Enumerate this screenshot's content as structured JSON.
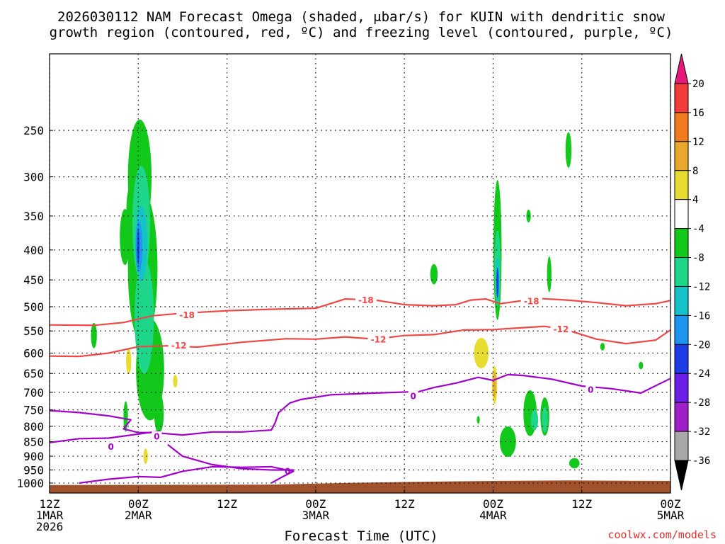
{
  "chart_data": {
    "type": "heatmap",
    "title_lines": [
      "2026030112 NAM Forecast Omega (shaded, μbar/s) for KUIN with dendritic snow",
      "growth region (contoured, red, ºC) and freezing level (contoured, purple, ºC)"
    ],
    "xlabel": "Forecast Time (UTC)",
    "credit": "coolwx.com/models",
    "x_range_hours": [
      0,
      84
    ],
    "x_ticks": [
      {
        "h": 0,
        "line1": "12Z",
        "line2": "1MAR",
        "line3": "2026"
      },
      {
        "h": 12,
        "line1": "00Z",
        "line2": "2MAR",
        "line3": ""
      },
      {
        "h": 24,
        "line1": "12Z",
        "line2": "",
        "line3": ""
      },
      {
        "h": 36,
        "line1": "00Z",
        "line2": "3MAR",
        "line3": ""
      },
      {
        "h": 48,
        "line1": "12Z",
        "line2": "",
        "line3": ""
      },
      {
        "h": 60,
        "line1": "00Z",
        "line2": "4MAR",
        "line3": ""
      },
      {
        "h": 72,
        "line1": "12Z",
        "line2": "",
        "line3": ""
      },
      {
        "h": 84,
        "line1": "00Z",
        "line2": "5MAR",
        "line3": ""
      }
    ],
    "y_axis": {
      "scale": "log",
      "range_hpa": [
        1040,
        185
      ],
      "inverted": true,
      "ticks": [
        250,
        300,
        350,
        400,
        450,
        500,
        550,
        600,
        650,
        700,
        750,
        800,
        850,
        900,
        950,
        1000
      ]
    },
    "colorbar": {
      "labels": [
        "20",
        "16",
        "12",
        "8",
        "4",
        "-4",
        "-8",
        "-12",
        "-16",
        "-20",
        "-24",
        "-28",
        "-32",
        "-36"
      ],
      "bins": [
        {
          "lo": 16,
          "hi": 20,
          "color": "#f23c3c"
        },
        {
          "lo": 12,
          "hi": 16,
          "color": "#f07a1e"
        },
        {
          "lo": 8,
          "hi": 12,
          "color": "#e8a82e"
        },
        {
          "lo": 4,
          "hi": 8,
          "color": "#e6dc32"
        },
        {
          "lo": -4,
          "hi": 4,
          "color": "#ffffff"
        },
        {
          "lo": -8,
          "hi": -4,
          "color": "#12c81a"
        },
        {
          "lo": -12,
          "hi": -8,
          "color": "#1ed68a"
        },
        {
          "lo": -16,
          "hi": -12,
          "color": "#14c2c8"
        },
        {
          "lo": -20,
          "hi": -16,
          "color": "#1e96f0"
        },
        {
          "lo": -24,
          "hi": -20,
          "color": "#1e3ce6"
        },
        {
          "lo": -28,
          "hi": -24,
          "color": "#6a1ee6"
        },
        {
          "lo": -32,
          "hi": -28,
          "color": "#a020c8"
        },
        {
          "lo": -36,
          "hi": -32,
          "color": "#a8a8a8"
        }
      ],
      "over_color": "#e6197a",
      "under_color": "#000000"
    },
    "colors": {
      "dgz": "#f04646",
      "freezing": "#a000c8",
      "terrain": "#a0522d"
    },
    "shaded_cells": [
      {
        "t": 10.2,
        "p": 380,
        "w": 1.4,
        "h": 0.22,
        "v": -6
      },
      {
        "t": 11.0,
        "p": 340,
        "w": 1.2,
        "h": 0.18,
        "v": -6
      },
      {
        "t": 12.2,
        "p": 300,
        "w": 3.2,
        "h": 0.45,
        "v": -6
      },
      {
        "t": 12.6,
        "p": 430,
        "w": 4.0,
        "h": 0.6,
        "v": -6
      },
      {
        "t": 13.6,
        "p": 640,
        "w": 3.8,
        "h": 0.4,
        "v": -6
      },
      {
        "t": 12.4,
        "p": 360,
        "w": 2.4,
        "h": 0.45,
        "v": -10
      },
      {
        "t": 12.8,
        "p": 520,
        "w": 2.6,
        "h": 0.45,
        "v": -10
      },
      {
        "t": 12.4,
        "p": 390,
        "w": 1.6,
        "h": 0.3,
        "v": -14
      },
      {
        "t": 12.1,
        "p": 395,
        "w": 0.9,
        "h": 0.2,
        "v": -18
      },
      {
        "t": 12.0,
        "p": 395,
        "w": 0.3,
        "h": 0.14,
        "v": -22
      },
      {
        "t": 14.8,
        "p": 760,
        "w": 1.3,
        "h": 0.16,
        "v": -6
      },
      {
        "t": 6.0,
        "p": 560,
        "w": 0.8,
        "h": 0.1,
        "v": -6
      },
      {
        "t": 10.3,
        "p": 770,
        "w": 0.6,
        "h": 0.12,
        "v": -6
      },
      {
        "t": 10.7,
        "p": 620,
        "w": 0.7,
        "h": 0.1,
        "v": 6
      },
      {
        "t": 13.0,
        "p": 900,
        "w": 0.6,
        "h": 0.06,
        "v": 6
      },
      {
        "t": 17.0,
        "p": 670,
        "w": 0.6,
        "h": 0.05,
        "v": 6
      },
      {
        "t": 60.6,
        "p": 400,
        "w": 1.1,
        "h": 0.55,
        "v": -6
      },
      {
        "t": 60.6,
        "p": 430,
        "w": 0.8,
        "h": 0.3,
        "v": -10
      },
      {
        "t": 60.6,
        "p": 450,
        "w": 0.5,
        "h": 0.18,
        "v": -16
      },
      {
        "t": 60.6,
        "p": 455,
        "w": 0.3,
        "h": 0.12,
        "v": -24
      },
      {
        "t": 58.4,
        "p": 600,
        "w": 2.0,
        "h": 0.12,
        "v": 6
      },
      {
        "t": 60.2,
        "p": 680,
        "w": 0.7,
        "h": 0.15,
        "v": 6
      },
      {
        "t": 60.2,
        "p": 680,
        "w": 0.4,
        "h": 0.1,
        "v": 10
      },
      {
        "t": 64.8,
        "p": 350,
        "w": 0.6,
        "h": 0.05,
        "v": -6
      },
      {
        "t": 70.2,
        "p": 270,
        "w": 0.8,
        "h": 0.14,
        "v": -6
      },
      {
        "t": 52.0,
        "p": 440,
        "w": 1.0,
        "h": 0.08,
        "v": -6
      },
      {
        "t": 67.6,
        "p": 440,
        "w": 0.6,
        "h": 0.14,
        "v": -6
      },
      {
        "t": 62.0,
        "p": 850,
        "w": 2.2,
        "h": 0.12,
        "v": -6
      },
      {
        "t": 65.0,
        "p": 760,
        "w": 1.8,
        "h": 0.18,
        "v": -6
      },
      {
        "t": 67.0,
        "p": 770,
        "w": 1.2,
        "h": 0.15,
        "v": -6
      },
      {
        "t": 65.6,
        "p": 780,
        "w": 1.0,
        "h": 0.08,
        "v": -10
      },
      {
        "t": 67.0,
        "p": 780,
        "w": 0.8,
        "h": 0.1,
        "v": -10
      },
      {
        "t": 74.8,
        "p": 585,
        "w": 0.6,
        "h": 0.03,
        "v": -6
      },
      {
        "t": 80.0,
        "p": 630,
        "w": 0.6,
        "h": 0.03,
        "v": -6
      },
      {
        "t": 71.0,
        "p": 925,
        "w": 1.4,
        "h": 0.04,
        "v": -6
      },
      {
        "t": 58.0,
        "p": 780,
        "w": 0.4,
        "h": 0.03,
        "v": -6
      }
    ],
    "dgz_contours": [
      {
        "label": "-18",
        "labels_at": [
          {
            "t": 18.6,
            "p": 516
          },
          {
            "t": 42.8,
            "p": 487
          },
          {
            "t": 65.2,
            "p": 489
          }
        ],
        "points": [
          [
            0,
            537
          ],
          [
            6,
            538
          ],
          [
            10,
            532
          ],
          [
            14,
            518
          ],
          [
            18,
            513
          ],
          [
            24,
            508
          ],
          [
            30,
            505
          ],
          [
            36,
            503
          ],
          [
            38,
            494
          ],
          [
            40,
            485
          ],
          [
            44,
            487
          ],
          [
            48,
            496
          ],
          [
            52,
            498
          ],
          [
            55,
            496
          ],
          [
            57,
            487
          ],
          [
            59,
            485
          ],
          [
            61,
            494
          ],
          [
            63,
            490
          ],
          [
            66,
            484
          ],
          [
            70,
            487
          ],
          [
            74,
            492
          ],
          [
            78,
            498
          ],
          [
            82,
            494
          ],
          [
            84,
            488
          ]
        ]
      },
      {
        "label": "-12",
        "labels_at": [
          {
            "t": 17.5,
            "p": 582
          },
          {
            "t": 44.5,
            "p": 568
          },
          {
            "t": 69.2,
            "p": 546
          }
        ],
        "points": [
          [
            0,
            607
          ],
          [
            4,
            608
          ],
          [
            8,
            600
          ],
          [
            12,
            585
          ],
          [
            16,
            583
          ],
          [
            20,
            586
          ],
          [
            26,
            575
          ],
          [
            32,
            567
          ],
          [
            36,
            568
          ],
          [
            40,
            563
          ],
          [
            44,
            568
          ],
          [
            48,
            560
          ],
          [
            52,
            558
          ],
          [
            56,
            548
          ],
          [
            60,
            547
          ],
          [
            64,
            543
          ],
          [
            67,
            540
          ],
          [
            70,
            548
          ],
          [
            74,
            568
          ],
          [
            78,
            578
          ],
          [
            82,
            570
          ],
          [
            84,
            548
          ]
        ]
      }
    ],
    "fz_contours": [
      {
        "label": "0",
        "labels_at": [
          {
            "t": 8.3,
            "p": 866
          }
        ],
        "points": [
          [
            0,
            853
          ],
          [
            4,
            840
          ],
          [
            8,
            838
          ],
          [
            12,
            825
          ],
          [
            15,
            815
          ]
        ]
      },
      {
        "label": "0",
        "labels_at": [
          {
            "t": 14.5,
            "p": 832
          },
          {
            "t": 32.2,
            "p": 954
          }
        ],
        "points": [
          [
            0,
            752
          ],
          [
            4,
            758
          ],
          [
            8,
            768
          ],
          [
            11,
            780
          ],
          [
            10,
            808
          ],
          [
            12,
            820
          ],
          [
            14,
            820
          ],
          [
            18,
            828
          ],
          [
            22,
            818
          ],
          [
            26,
            818
          ],
          [
            30,
            812
          ],
          [
            30.5,
            790
          ],
          [
            31,
            758
          ],
          [
            32.5,
            730
          ],
          [
            34,
            720
          ],
          [
            38,
            707
          ],
          [
            44,
            702
          ],
          [
            50,
            698
          ],
          [
            52,
            687
          ],
          [
            55,
            675
          ],
          [
            58,
            660
          ],
          [
            60,
            668
          ],
          [
            62,
            653
          ],
          [
            64,
            655
          ],
          [
            68,
            665
          ],
          [
            72,
            683
          ],
          [
            76,
            690
          ],
          [
            80,
            702
          ],
          [
            84,
            663
          ]
        ]
      },
      {
        "label": "0",
        "labels_at": [
          {
            "t": 49.2,
            "p": 710
          },
          {
            "t": 73.2,
            "p": 693
          }
        ],
        "points": [
          [
            4,
            1000
          ],
          [
            8,
            985
          ],
          [
            12,
            975
          ],
          [
            15,
            978
          ],
          [
            18,
            955
          ],
          [
            22,
            938
          ],
          [
            26,
            940
          ],
          [
            30,
            938
          ],
          [
            33,
            955
          ],
          [
            31.5,
            976
          ],
          [
            30,
            1000
          ]
        ]
      },
      {
        "label": "",
        "labels_at": [],
        "points": [
          [
            16,
            860
          ],
          [
            18,
            900
          ],
          [
            22,
            930
          ],
          [
            26,
            945
          ],
          [
            30,
            950
          ],
          [
            33,
            950
          ]
        ]
      }
    ],
    "terrain_pressure": [
      [
        0,
        1008
      ],
      [
        30,
        1006
      ],
      [
        40,
        1000
      ],
      [
        50,
        995
      ],
      [
        60,
        992
      ],
      [
        70,
        990
      ],
      [
        84,
        992
      ]
    ]
  }
}
